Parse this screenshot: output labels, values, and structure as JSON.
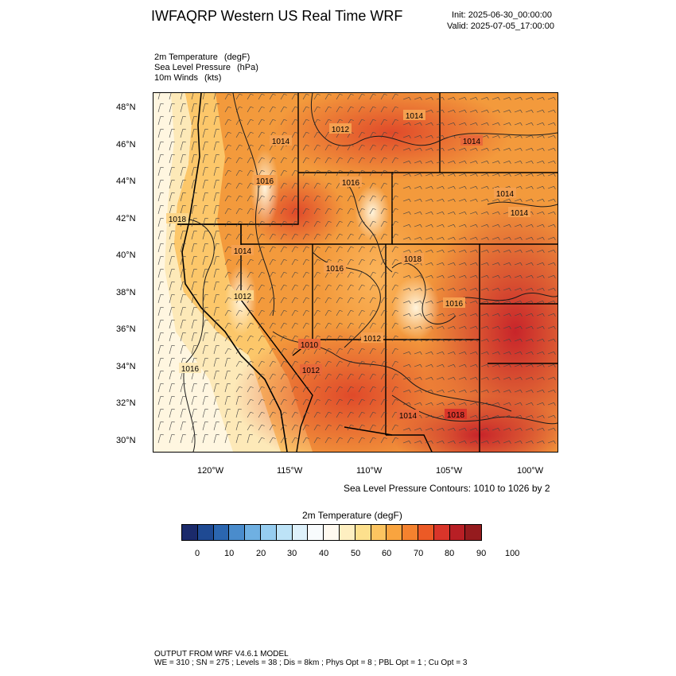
{
  "header": {
    "title": "IWFAQRP Western US Real Time WRF",
    "init": "Init: 2025-06-30_00:00:00",
    "valid": "Valid: 2025-07-05_17:00:00"
  },
  "fields": [
    {
      "name": "2m Temperature",
      "unit": "(degF)"
    },
    {
      "name": "Sea Level Pressure",
      "unit": "(hPa)"
    },
    {
      "name": "10m Winds",
      "unit": "(kts)"
    }
  ],
  "map": {
    "lat_ticks": [
      "48°N",
      "46°N",
      "44°N",
      "42°N",
      "40°N",
      "38°N",
      "36°N",
      "34°N",
      "32°N",
      "30°N"
    ],
    "lon_ticks": [
      "120°W",
      "115°W",
      "110°W",
      "105°W",
      "100°W"
    ],
    "slp_labels": [
      "1014",
      "1012",
      "1016",
      "1016",
      "1014",
      "1018",
      "1014",
      "1016",
      "1018",
      "1012",
      "1016",
      "1010",
      "1012",
      "1012",
      "1016",
      "1014",
      "1018",
      "1014",
      "1014",
      "1014"
    ],
    "contour_note": "Sea Level Pressure Contours: 1010 to 1026 by 2"
  },
  "colorbar": {
    "title": "2m Temperature  (degF)",
    "ticks": [
      "0",
      "10",
      "20",
      "30",
      "40",
      "50",
      "60",
      "70",
      "80",
      "90",
      "100"
    ],
    "colors": [
      "#1b2a6b",
      "#1f4a93",
      "#2b66b0",
      "#4a8ccc",
      "#6fb0e2",
      "#96cdf0",
      "#bde3f7",
      "#def1fb",
      "#f8fbfd",
      "#fffaf0",
      "#feefc1",
      "#fde08d",
      "#fcc460",
      "#f9a43f",
      "#f5822e",
      "#ec5a26",
      "#d9352a",
      "#b81f25",
      "#951b1e"
    ]
  },
  "footer": {
    "line1": "OUTPUT FROM WRF V4.6.1 MODEL",
    "line2": "WE = 310 ; SN = 275 ; Levels = 38 ; Dis = 8km ; Phys Opt = 8 ; PBL Opt = 1 ; Cu Opt = 3"
  }
}
